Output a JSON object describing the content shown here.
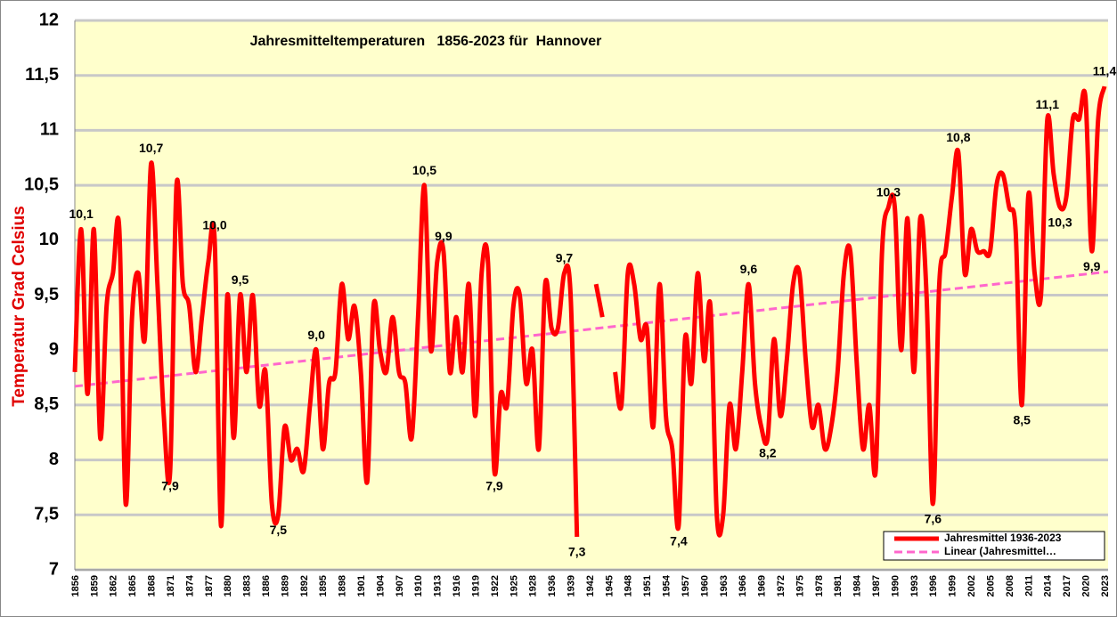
{
  "chart_data": {
    "type": "line",
    "title": "Jahresmitteltemperaturen   1856-2023 für  Hannover",
    "y_label": "Temperatur Grad Celsius",
    "categories": [
      "1856",
      null,
      null,
      "1859",
      null,
      null,
      "1862",
      null,
      null,
      "1865",
      null,
      null,
      "1868",
      null,
      null,
      "1871",
      null,
      null,
      "1874",
      null,
      null,
      "1877",
      null,
      null,
      "1880",
      null,
      null,
      "1883",
      null,
      null,
      "1886",
      null,
      null,
      "1889",
      null,
      null,
      "1892",
      null,
      null,
      "1895",
      null,
      null,
      "1898",
      null,
      null,
      "1901",
      null,
      null,
      "1904",
      null,
      null,
      "1907",
      null,
      null,
      "1910",
      null,
      null,
      "1913",
      null,
      null,
      "1916",
      null,
      null,
      "1919",
      null,
      null,
      "1922",
      null,
      null,
      "1925",
      null,
      null,
      "1928",
      null,
      null,
      "1936",
      null,
      null,
      "1939",
      null,
      null,
      "1942",
      null,
      null,
      "1945",
      null,
      null,
      "1948",
      null,
      null,
      "1951",
      null,
      null,
      "1954",
      null,
      null,
      "1957",
      null,
      null,
      "1960",
      null,
      null,
      "1963",
      null,
      null,
      "1966",
      null,
      null,
      "1969",
      null,
      null,
      "1972",
      null,
      null,
      "1975",
      null,
      null,
      "1978",
      null,
      null,
      "1981",
      null,
      null,
      "1984",
      null,
      null,
      "1987",
      null,
      null,
      "1990",
      null,
      null,
      "1993",
      null,
      null,
      "1996",
      null,
      null,
      "1999",
      null,
      null,
      "2002",
      null,
      null,
      "2005",
      null,
      null,
      "2008",
      null,
      null,
      "2011",
      null,
      null,
      "2014",
      null,
      null,
      "2017",
      null,
      null,
      "2020",
      null,
      null,
      "2023"
    ],
    "series": [
      {
        "name": "Jahresmittel 1936-2023",
        "color": "#ff0000",
        "values": [
          8.8,
          10.1,
          8.6,
          10.1,
          8.2,
          9.4,
          9.7,
          10.1,
          7.6,
          9.3,
          9.7,
          9.1,
          10.7,
          9.6,
          8.4,
          7.9,
          10.5,
          9.6,
          9.4,
          8.8,
          9.3,
          9.8,
          10.0,
          7.4,
          9.5,
          8.2,
          9.5,
          8.8,
          9.5,
          8.5,
          8.8,
          7.6,
          7.5,
          8.3,
          8.0,
          8.1,
          7.9,
          8.5,
          9.0,
          8.1,
          8.7,
          8.8,
          9.6,
          9.1,
          9.4,
          8.8,
          7.8,
          9.4,
          9.0,
          8.8,
          9.3,
          8.8,
          8.7,
          8.2,
          9.3,
          10.5,
          9.0,
          9.8,
          9.9,
          8.8,
          9.3,
          8.8,
          9.6,
          8.4,
          9.7,
          9.8,
          7.9,
          8.6,
          8.5,
          9.4,
          9.5,
          8.7,
          9.0,
          8.1,
          9.6,
          9.2,
          9.2,
          9.7,
          9.5,
          7.3,
          null,
          null,
          9.6,
          9.3,
          null,
          8.8,
          8.5,
          9.7,
          9.6,
          9.1,
          9.2,
          8.3,
          9.6,
          8.4,
          8.1,
          7.4,
          9.1,
          8.7,
          9.7,
          8.9,
          9.4,
          7.5,
          7.5,
          8.5,
          8.1,
          8.8,
          9.6,
          8.7,
          8.3,
          8.2,
          9.1,
          8.4,
          8.9,
          9.6,
          9.7,
          8.9,
          8.3,
          8.5,
          8.1,
          8.3,
          8.8,
          9.7,
          9.9,
          8.9,
          8.1,
          8.5,
          7.9,
          9.9,
          10.3,
          10.3,
          9.0,
          10.2,
          8.8,
          10.2,
          9.5,
          7.6,
          9.6,
          9.9,
          10.4,
          10.8,
          9.7,
          10.1,
          9.9,
          9.9,
          9.9,
          10.5,
          10.6,
          10.3,
          10.1,
          8.5,
          10.4,
          9.7,
          9.5,
          11.1,
          10.6,
          10.3,
          10.4,
          11.1,
          11.1,
          11.3,
          9.9,
          11.1,
          11.4
        ],
        "value_labels": [
          null,
          "10,1",
          null,
          null,
          null,
          null,
          null,
          null,
          null,
          null,
          null,
          null,
          "10,7",
          null,
          null,
          "7,9",
          null,
          null,
          null,
          null,
          null,
          null,
          "10,0",
          null,
          null,
          null,
          "9,5",
          null,
          null,
          null,
          null,
          null,
          "7,5",
          null,
          null,
          null,
          null,
          null,
          "9,0",
          null,
          null,
          null,
          null,
          null,
          null,
          null,
          null,
          null,
          null,
          null,
          null,
          null,
          null,
          null,
          null,
          "10,5",
          null,
          null,
          "9,9",
          null,
          null,
          null,
          null,
          null,
          null,
          null,
          "7,9",
          null,
          null,
          null,
          null,
          null,
          null,
          null,
          null,
          null,
          null,
          "9,7",
          null,
          "7,3",
          null,
          null,
          null,
          null,
          null,
          null,
          null,
          null,
          null,
          null,
          null,
          null,
          null,
          null,
          null,
          "7,4",
          null,
          null,
          null,
          null,
          null,
          null,
          null,
          null,
          null,
          null,
          "9,6",
          null,
          null,
          "8,2",
          null,
          null,
          null,
          null,
          null,
          null,
          null,
          null,
          null,
          null,
          null,
          null,
          null,
          null,
          null,
          null,
          null,
          null,
          "10,3",
          null,
          null,
          null,
          null,
          null,
          null,
          "7,6",
          null,
          null,
          null,
          "10,8",
          null,
          null,
          null,
          null,
          null,
          null,
          null,
          null,
          null,
          "8,5",
          null,
          null,
          null,
          "11,1",
          null,
          "10,3",
          null,
          null,
          null,
          null,
          "9,9",
          null,
          "11,4"
        ]
      }
    ],
    "trend": {
      "name": "Linear (Jahresmittel…",
      "color": "#ff66cc",
      "start": 8.67,
      "end": 9.71
    },
    "ylim": [
      7,
      12
    ],
    "yticks": [
      7,
      {
        "value": 7.5,
        "label": "7,5"
      },
      8,
      {
        "value": 8.5,
        "label": "8,5"
      },
      9,
      {
        "value": 9.5,
        "label": "9,5"
      },
      10,
      {
        "value": 10.5,
        "label": "10,5"
      },
      11,
      {
        "value": 11.5,
        "label": "11,5"
      },
      12
    ],
    "grid": true,
    "legend": "bottom-right"
  }
}
